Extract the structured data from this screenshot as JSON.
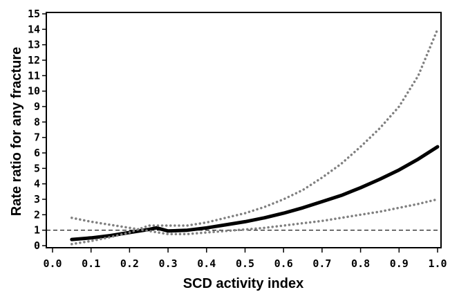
{
  "chart_data": {
    "type": "line",
    "title": "",
    "xlabel": "SCD activity index",
    "ylabel": "Rate ratio for any fracture",
    "xlim": [
      0.0,
      1.0
    ],
    "ylim": [
      0,
      15
    ],
    "x_ticks": [
      "0.0",
      "0.1",
      "0.2",
      "0.3",
      "0.4",
      "0.5",
      "0.6",
      "0.7",
      "0.8",
      "0.9",
      "1.0"
    ],
    "y_ticks": [
      "0",
      "1",
      "2",
      "3",
      "4",
      "5",
      "6",
      "7",
      "8",
      "9",
      "10",
      "11",
      "12",
      "13",
      "14",
      "15"
    ],
    "grid": false,
    "legend": "none",
    "reference_line": {
      "y": 1,
      "style": "dashed",
      "color": "#000000"
    },
    "series": [
      {
        "role": "estimate",
        "style": "solid",
        "color": "#000000",
        "points": [
          {
            "x": 0.05,
            "y": 0.4
          },
          {
            "x": 0.1,
            "y": 0.5
          },
          {
            "x": 0.15,
            "y": 0.65
          },
          {
            "x": 0.2,
            "y": 0.85
          },
          {
            "x": 0.25,
            "y": 1.05
          },
          {
            "x": 0.27,
            "y": 1.15
          },
          {
            "x": 0.3,
            "y": 0.95
          },
          {
            "x": 0.35,
            "y": 1.0
          },
          {
            "x": 0.4,
            "y": 1.15
          },
          {
            "x": 0.45,
            "y": 1.35
          },
          {
            "x": 0.5,
            "y": 1.55
          },
          {
            "x": 0.55,
            "y": 1.8
          },
          {
            "x": 0.6,
            "y": 2.1
          },
          {
            "x": 0.65,
            "y": 2.45
          },
          {
            "x": 0.7,
            "y": 2.85
          },
          {
            "x": 0.75,
            "y": 3.25
          },
          {
            "x": 0.8,
            "y": 3.75
          },
          {
            "x": 0.85,
            "y": 4.3
          },
          {
            "x": 0.9,
            "y": 4.9
          },
          {
            "x": 0.95,
            "y": 5.6
          },
          {
            "x": 1.0,
            "y": 6.4
          }
        ]
      },
      {
        "role": "upper-ci",
        "style": "dotted",
        "color": "#808080",
        "points": [
          {
            "x": 0.05,
            "y": 0.1
          },
          {
            "x": 0.1,
            "y": 0.3
          },
          {
            "x": 0.15,
            "y": 0.55
          },
          {
            "x": 0.2,
            "y": 0.85
          },
          {
            "x": 0.25,
            "y": 1.3
          },
          {
            "x": 0.3,
            "y": 1.3
          },
          {
            "x": 0.35,
            "y": 1.3
          },
          {
            "x": 0.4,
            "y": 1.5
          },
          {
            "x": 0.45,
            "y": 1.8
          },
          {
            "x": 0.5,
            "y": 2.1
          },
          {
            "x": 0.55,
            "y": 2.5
          },
          {
            "x": 0.6,
            "y": 3.0
          },
          {
            "x": 0.65,
            "y": 3.6
          },
          {
            "x": 0.7,
            "y": 4.4
          },
          {
            "x": 0.75,
            "y": 5.3
          },
          {
            "x": 0.8,
            "y": 6.4
          },
          {
            "x": 0.85,
            "y": 7.6
          },
          {
            "x": 0.9,
            "y": 9.0
          },
          {
            "x": 0.95,
            "y": 11.0
          },
          {
            "x": 1.0,
            "y": 14.0
          }
        ]
      },
      {
        "role": "lower-ci",
        "style": "dotted",
        "color": "#808080",
        "points": [
          {
            "x": 0.05,
            "y": 1.8
          },
          {
            "x": 0.1,
            "y": 1.55
          },
          {
            "x": 0.15,
            "y": 1.35
          },
          {
            "x": 0.2,
            "y": 1.15
          },
          {
            "x": 0.25,
            "y": 0.95
          },
          {
            "x": 0.3,
            "y": 0.75
          },
          {
            "x": 0.35,
            "y": 0.75
          },
          {
            "x": 0.4,
            "y": 0.85
          },
          {
            "x": 0.45,
            "y": 0.95
          },
          {
            "x": 0.5,
            "y": 1.05
          },
          {
            "x": 0.55,
            "y": 1.15
          },
          {
            "x": 0.6,
            "y": 1.3
          },
          {
            "x": 0.65,
            "y": 1.45
          },
          {
            "x": 0.7,
            "y": 1.6
          },
          {
            "x": 0.75,
            "y": 1.8
          },
          {
            "x": 0.8,
            "y": 2.0
          },
          {
            "x": 0.85,
            "y": 2.2
          },
          {
            "x": 0.9,
            "y": 2.45
          },
          {
            "x": 0.95,
            "y": 2.7
          },
          {
            "x": 1.0,
            "y": 3.0
          }
        ]
      }
    ]
  }
}
